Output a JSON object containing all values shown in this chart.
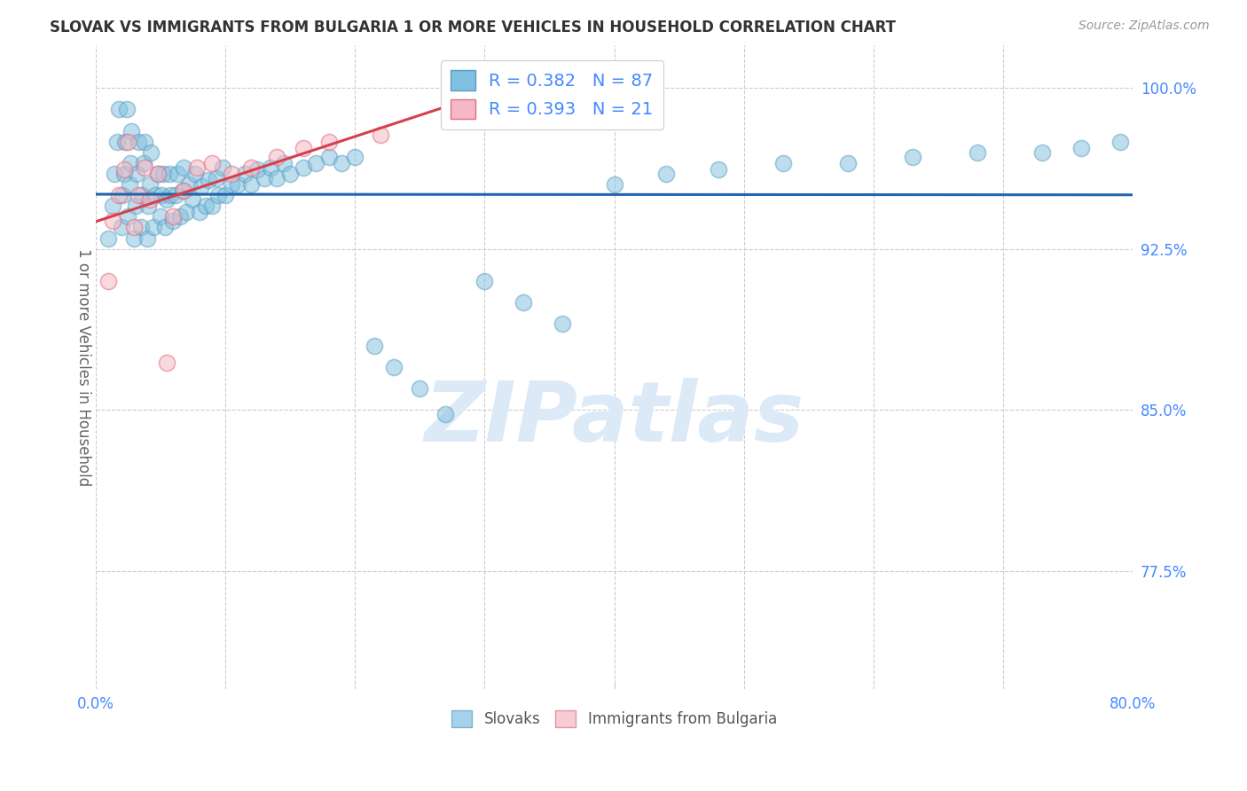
{
  "title": "SLOVAK VS IMMIGRANTS FROM BULGARIA 1 OR MORE VEHICLES IN HOUSEHOLD CORRELATION CHART",
  "source": "Source: ZipAtlas.com",
  "ylabel": "1 or more Vehicles in Household",
  "xlim": [
    0.0,
    0.8
  ],
  "ylim": [
    0.72,
    1.02
  ],
  "yticks": [
    0.775,
    0.85,
    0.925,
    1.0
  ],
  "ytick_labels": [
    "77.5%",
    "85.0%",
    "92.5%",
    "100.0%"
  ],
  "xticks": [
    0.0,
    0.1,
    0.2,
    0.3,
    0.4,
    0.5,
    0.6,
    0.7,
    0.8
  ],
  "xtick_labels": [
    "0.0%",
    "",
    "",
    "",
    "",
    "",
    "",
    "",
    "80.0%"
  ],
  "grid_color": "#cccccc",
  "background_color": "#ffffff",
  "watermark": "ZIPatlas",
  "watermark_color": "#dce9f7",
  "blue_color": "#7fbfdf",
  "blue_edge_color": "#5a9ec0",
  "blue_line_color": "#2166ac",
  "pink_color": "#f5b8c4",
  "pink_edge_color": "#e07080",
  "pink_line_color": "#d6404d",
  "legend_R_blue": "R = 0.382",
  "legend_N_blue": "N = 87",
  "legend_R_pink": "R = 0.393",
  "legend_N_pink": "N = 21",
  "slovak_x": [
    0.01,
    0.013,
    0.015,
    0.017,
    0.018,
    0.02,
    0.021,
    0.022,
    0.023,
    0.024,
    0.025,
    0.026,
    0.027,
    0.028,
    0.03,
    0.031,
    0.032,
    0.033,
    0.035,
    0.036,
    0.037,
    0.038,
    0.04,
    0.041,
    0.042,
    0.043,
    0.045,
    0.046,
    0.048,
    0.05,
    0.051,
    0.052,
    0.054,
    0.055,
    0.057,
    0.058,
    0.06,
    0.062,
    0.063,
    0.065,
    0.067,
    0.068,
    0.07,
    0.072,
    0.075,
    0.077,
    0.08,
    0.082,
    0.085,
    0.087,
    0.09,
    0.093,
    0.095,
    0.098,
    0.1,
    0.105,
    0.11,
    0.115,
    0.12,
    0.125,
    0.13,
    0.135,
    0.14,
    0.145,
    0.15,
    0.16,
    0.17,
    0.18,
    0.19,
    0.2,
    0.215,
    0.23,
    0.25,
    0.27,
    0.3,
    0.33,
    0.36,
    0.4,
    0.44,
    0.48,
    0.53,
    0.58,
    0.63,
    0.68,
    0.73,
    0.76,
    0.79
  ],
  "slovak_y": [
    0.93,
    0.945,
    0.96,
    0.975,
    0.99,
    0.935,
    0.95,
    0.96,
    0.975,
    0.99,
    0.94,
    0.955,
    0.965,
    0.98,
    0.93,
    0.945,
    0.96,
    0.975,
    0.935,
    0.95,
    0.965,
    0.975,
    0.93,
    0.945,
    0.955,
    0.97,
    0.935,
    0.95,
    0.96,
    0.94,
    0.95,
    0.96,
    0.935,
    0.948,
    0.96,
    0.95,
    0.938,
    0.95,
    0.96,
    0.94,
    0.952,
    0.963,
    0.942,
    0.955,
    0.948,
    0.96,
    0.942,
    0.954,
    0.945,
    0.957,
    0.945,
    0.958,
    0.95,
    0.963,
    0.95,
    0.955,
    0.955,
    0.96,
    0.955,
    0.962,
    0.958,
    0.963,
    0.958,
    0.965,
    0.96,
    0.963,
    0.965,
    0.968,
    0.965,
    0.968,
    0.88,
    0.87,
    0.86,
    0.848,
    0.91,
    0.9,
    0.89,
    0.955,
    0.96,
    0.962,
    0.965,
    0.965,
    0.968,
    0.97,
    0.97,
    0.972,
    0.975
  ],
  "bulg_x": [
    0.01,
    0.013,
    0.018,
    0.022,
    0.025,
    0.03,
    0.033,
    0.038,
    0.042,
    0.048,
    0.055,
    0.06,
    0.068,
    0.078,
    0.09,
    0.105,
    0.12,
    0.14,
    0.16,
    0.18,
    0.22
  ],
  "bulg_y": [
    0.91,
    0.938,
    0.95,
    0.962,
    0.975,
    0.935,
    0.95,
    0.963,
    0.948,
    0.96,
    0.872,
    0.94,
    0.952,
    0.963,
    0.965,
    0.96,
    0.963,
    0.968,
    0.972,
    0.975,
    0.978
  ]
}
